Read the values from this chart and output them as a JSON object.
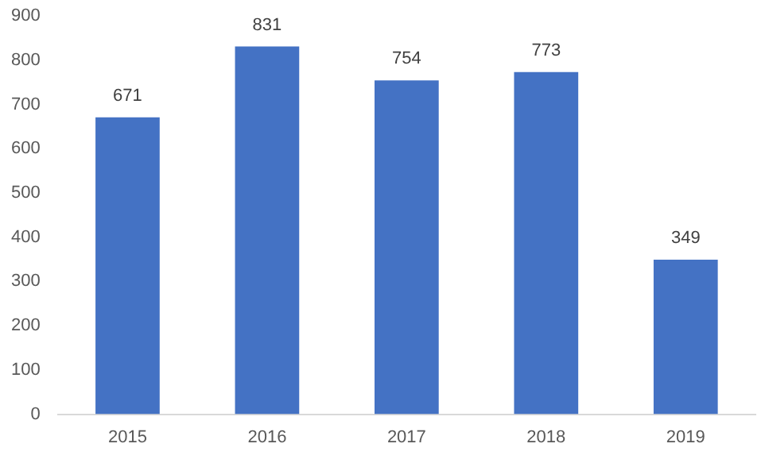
{
  "chart_data": {
    "type": "bar",
    "categories": [
      "2015",
      "2016",
      "2017",
      "2018",
      "2019"
    ],
    "values": [
      671,
      831,
      754,
      773,
      349
    ],
    "color": "#4472c4",
    "ylim": [
      0,
      900
    ],
    "yticks": [
      0,
      100,
      200,
      300,
      400,
      500,
      600,
      700,
      800,
      900
    ],
    "grid": false,
    "data_labels": true
  }
}
